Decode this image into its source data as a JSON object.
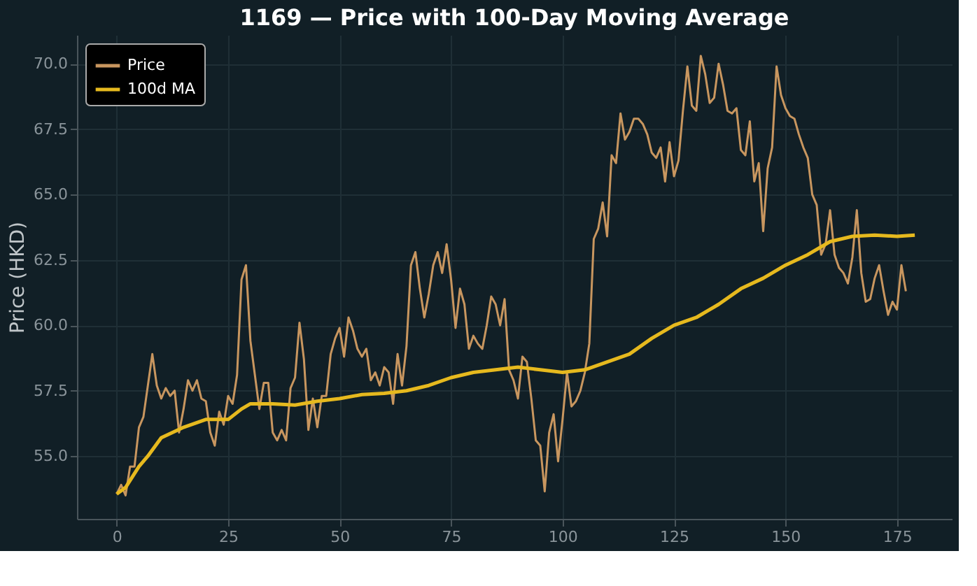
{
  "chart_data": {
    "type": "line",
    "title": "1169 — Price with 100-Day Moving Average",
    "ylabel": "Price (HKD)",
    "xlim": [
      -8.9,
      187.3
    ],
    "xticks": [
      0,
      25,
      50,
      75,
      100,
      125,
      150,
      175
    ],
    "ylim": [
      52.6,
      71.1
    ],
    "yticks": [
      {
        "value": 55,
        "label": "55.0"
      },
      57.5,
      {
        "value": 60,
        "label": "60.0"
      },
      62.5,
      {
        "value": 65,
        "label": "65.0"
      },
      67.5,
      {
        "value": 70,
        "label": "70.0"
      }
    ],
    "grid": true,
    "legend": "top left",
    "series": [
      {
        "name": "Price",
        "color": "#c8965f",
        "x": [
          0,
          1,
          2,
          3,
          4,
          5,
          6,
          7,
          8,
          9,
          10,
          11,
          12,
          13,
          14,
          15,
          16,
          17,
          18,
          19,
          20,
          21,
          22,
          23,
          24,
          25,
          26,
          27,
          28,
          29,
          30,
          31,
          32,
          33,
          34,
          35,
          36,
          37,
          38,
          39,
          40,
          41,
          42,
          43,
          44,
          45,
          46,
          47,
          48,
          49,
          50,
          51,
          52,
          53,
          54,
          55,
          56,
          57,
          58,
          59,
          60,
          61,
          62,
          63,
          64,
          65,
          66,
          67,
          68,
          69,
          70,
          71,
          72,
          73,
          74,
          75,
          76,
          77,
          78,
          79,
          80,
          81,
          82,
          83,
          84,
          85,
          86,
          87,
          88,
          89,
          90,
          91,
          92,
          93,
          94,
          95,
          96,
          97,
          98,
          99,
          100,
          101,
          102,
          103,
          104,
          105,
          106,
          107,
          108,
          109,
          110,
          111,
          112,
          113,
          114,
          115,
          116,
          117,
          118,
          119,
          120,
          121,
          122,
          123,
          124,
          125,
          126,
          127,
          128,
          129,
          130,
          131,
          132,
          133,
          134,
          135,
          136,
          137,
          138,
          139,
          140,
          141,
          142,
          143,
          144,
          145,
          146,
          147,
          148,
          149,
          150,
          151,
          152,
          153,
          154,
          155,
          156,
          157,
          158,
          159,
          160,
          161,
          162,
          163,
          164,
          165,
          166,
          167,
          168,
          169,
          170,
          171,
          172,
          173,
          174,
          175,
          176,
          177
        ],
        "values": [
          53.55,
          53.9,
          53.5,
          54.6,
          54.6,
          56.1,
          56.5,
          57.7,
          58.9,
          57.7,
          57.2,
          57.6,
          57.3,
          57.5,
          55.9,
          56.8,
          57.9,
          57.5,
          57.9,
          57.2,
          57.1,
          55.9,
          55.4,
          56.7,
          56.2,
          57.3,
          57.0,
          58.1,
          61.75,
          62.3,
          59.4,
          58.1,
          56.8,
          57.8,
          57.8,
          55.9,
          55.6,
          56.0,
          55.6,
          57.6,
          58.0,
          60.1,
          58.7,
          56.0,
          57.2,
          56.1,
          57.3,
          57.3,
          58.9,
          59.5,
          59.9,
          58.8,
          60.3,
          59.8,
          59.1,
          58.8,
          59.1,
          57.9,
          58.2,
          57.7,
          58.4,
          58.2,
          57.0,
          58.9,
          57.7,
          59.2,
          62.3,
          62.8,
          61.4,
          60.3,
          61.2,
          62.3,
          62.8,
          62.0,
          63.1,
          61.75,
          59.9,
          61.4,
          60.8,
          59.1,
          59.6,
          59.3,
          59.1,
          60.0,
          61.1,
          60.8,
          60.0,
          61.0,
          58.3,
          57.9,
          57.2,
          58.8,
          58.6,
          57.2,
          55.6,
          55.4,
          53.65,
          55.9,
          56.6,
          54.8,
          56.4,
          58.2,
          56.9,
          57.1,
          57.5,
          58.2,
          59.3,
          63.3,
          63.7,
          64.7,
          63.4,
          66.5,
          66.2,
          68.1,
          67.1,
          67.4,
          67.9,
          67.9,
          67.7,
          67.3,
          66.6,
          66.4,
          66.8,
          65.5,
          67.0,
          65.7,
          66.3,
          68.2,
          69.9,
          68.4,
          68.2,
          70.3,
          69.6,
          68.5,
          68.7,
          70.0,
          69.2,
          68.2,
          68.1,
          68.3,
          66.7,
          66.5,
          67.8,
          65.5,
          66.2,
          63.6,
          66.0,
          66.8,
          69.9,
          68.8,
          68.3,
          68.0,
          67.9,
          67.3,
          66.8,
          66.4,
          65.0,
          64.6,
          62.7,
          63.1,
          64.4,
          62.7,
          62.2,
          62.0,
          61.6,
          62.6,
          64.4,
          62.0,
          60.9,
          61.0,
          61.8,
          62.3,
          61.3,
          60.4,
          60.9,
          60.6,
          62.3,
          61.3
        ]
      },
      {
        "name": "100d MA",
        "color": "#e6b91e",
        "x": [
          0,
          2,
          5,
          7,
          10,
          15,
          20,
          25,
          28,
          30,
          35,
          40,
          45,
          50,
          55,
          60,
          65,
          70,
          75,
          80,
          85,
          90,
          95,
          100,
          105,
          110,
          115,
          120,
          125,
          130,
          135,
          140,
          145,
          150,
          155,
          160,
          165,
          170,
          175,
          179
        ],
        "values": [
          53.55,
          53.8,
          54.6,
          55.0,
          55.7,
          56.1,
          56.4,
          56.4,
          56.8,
          57.0,
          57.0,
          56.95,
          57.1,
          57.2,
          57.35,
          57.4,
          57.5,
          57.7,
          58.0,
          58.2,
          58.3,
          58.4,
          58.3,
          58.2,
          58.3,
          58.6,
          58.9,
          59.5,
          60.0,
          60.3,
          60.8,
          61.4,
          61.8,
          62.3,
          62.7,
          63.2,
          63.4,
          63.45,
          63.4,
          63.45
        ]
      }
    ]
  }
}
